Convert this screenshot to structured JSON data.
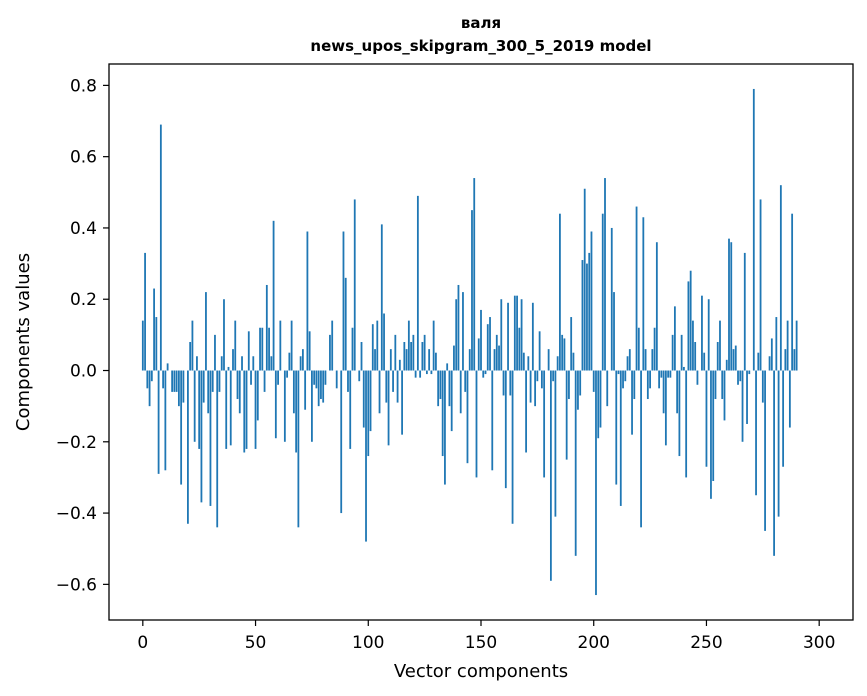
{
  "chart_data": {
    "type": "bar",
    "title": "валя",
    "subtitle": "news_upos_skipgram_300_5_2019 model",
    "xlabel": "Vector components",
    "ylabel": "Components values",
    "xlim": [
      -15,
      315
    ],
    "ylim": [
      -0.7,
      0.86
    ],
    "xticks": [
      0,
      50,
      100,
      150,
      200,
      250,
      300
    ],
    "xtick_labels": [
      "0",
      "50",
      "100",
      "150",
      "200",
      "250",
      "300"
    ],
    "yticks": [
      -0.6,
      -0.4,
      -0.2,
      0.0,
      0.2,
      0.4,
      0.6,
      0.8
    ],
    "ytick_labels": [
      "−0.6",
      "−0.4",
      "−0.2",
      "0.0",
      "0.2",
      "0.4",
      "0.6",
      "0.8"
    ],
    "grid": false,
    "bar_color": "#1f77b4",
    "values": [
      0.14,
      0.33,
      -0.05,
      -0.1,
      -0.03,
      0.23,
      0.15,
      -0.29,
      0.69,
      -0.05,
      -0.28,
      0.02,
      0.0,
      -0.06,
      -0.06,
      -0.06,
      -0.1,
      -0.32,
      -0.09,
      0.0,
      -0.43,
      0.08,
      0.14,
      -0.2,
      0.04,
      -0.22,
      -0.37,
      -0.09,
      0.22,
      -0.12,
      -0.38,
      -0.06,
      0.1,
      -0.44,
      -0.06,
      0.04,
      0.2,
      -0.22,
      0.01,
      -0.21,
      0.06,
      0.14,
      -0.08,
      -0.12,
      0.04,
      -0.23,
      -0.22,
      0.11,
      -0.04,
      0.04,
      -0.22,
      -0.14,
      0.12,
      0.12,
      -0.06,
      0.24,
      0.12,
      0.04,
      0.42,
      -0.19,
      -0.04,
      0.14,
      0.0,
      -0.2,
      -0.02,
      0.05,
      0.14,
      -0.12,
      -0.23,
      -0.44,
      0.04,
      0.06,
      -0.11,
      0.39,
      0.11,
      -0.2,
      -0.04,
      -0.05,
      -0.1,
      -0.08,
      -0.09,
      -0.04,
      0.0,
      0.1,
      0.14,
      0.0,
      -0.05,
      0.0,
      -0.4,
      0.39,
      0.26,
      -0.06,
      -0.22,
      0.12,
      0.48,
      0.0,
      -0.03,
      0.08,
      -0.16,
      -0.48,
      -0.24,
      -0.17,
      0.13,
      0.06,
      0.14,
      -0.12,
      0.41,
      0.16,
      -0.09,
      -0.21,
      0.06,
      -0.06,
      0.1,
      -0.09,
      0.03,
      -0.18,
      0.08,
      0.06,
      0.14,
      0.08,
      0.1,
      -0.02,
      0.49,
      -0.02,
      0.08,
      0.1,
      -0.01,
      0.06,
      -0.01,
      0.14,
      0.05,
      -0.1,
      -0.08,
      -0.24,
      -0.32,
      0.02,
      -0.1,
      -0.17,
      0.07,
      0.2,
      0.24,
      -0.12,
      0.22,
      -0.06,
      -0.26,
      0.06,
      0.45,
      0.54,
      -0.3,
      0.09,
      0.17,
      -0.02,
      -0.01,
      0.13,
      0.15,
      -0.28,
      0.06,
      0.1,
      0.07,
      0.2,
      -0.07,
      -0.33,
      0.19,
      -0.07,
      -0.43,
      0.21,
      0.21,
      0.12,
      0.2,
      0.05,
      -0.23,
      0.04,
      -0.09,
      0.19,
      -0.1,
      -0.03,
      0.11,
      -0.05,
      -0.3,
      0.0,
      0.06,
      -0.59,
      -0.03,
      -0.41,
      0.04,
      0.44,
      0.1,
      0.09,
      -0.25,
      -0.08,
      0.15,
      0.05,
      -0.52,
      -0.11,
      -0.07,
      0.31,
      0.51,
      0.3,
      0.33,
      0.39,
      -0.06,
      -0.63,
      -0.19,
      -0.16,
      0.44,
      0.54,
      -0.1,
      0.0,
      0.4,
      0.22,
      -0.32,
      -0.01,
      -0.38,
      -0.05,
      -0.03,
      0.04,
      0.06,
      -0.18,
      -0.08,
      0.46,
      0.12,
      -0.44,
      0.43,
      0.06,
      -0.08,
      -0.05,
      0.06,
      0.12,
      0.36,
      -0.05,
      -0.02,
      -0.12,
      -0.21,
      -0.02,
      -0.02,
      0.1,
      0.18,
      -0.12,
      -0.24,
      0.1,
      0.01,
      -0.3,
      0.25,
      0.28,
      0.14,
      0.08,
      -0.04,
      0.0,
      0.21,
      0.05,
      -0.27,
      0.2,
      -0.36,
      -0.31,
      -0.08,
      0.08,
      0.14,
      -0.08,
      -0.14,
      0.03,
      0.37,
      0.36,
      0.06,
      0.07,
      -0.04,
      -0.03,
      -0.2,
      0.33,
      -0.15,
      -0.01,
      0.0,
      0.79,
      -0.35,
      0.05,
      0.48,
      -0.09,
      -0.45,
      0.0,
      0.04,
      0.09,
      -0.52,
      0.15,
      -0.41,
      0.52,
      -0.27,
      0.06,
      0.14,
      -0.16,
      0.44,
      0.06,
      0.14
    ]
  }
}
